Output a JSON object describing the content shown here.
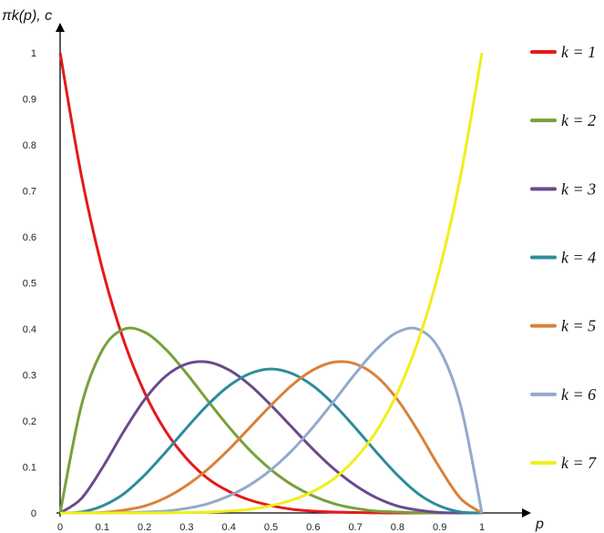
{
  "chart_data": {
    "type": "line",
    "ylabel": "πk(p), c",
    "xlabel": "p",
    "xlim": [
      0,
      1
    ],
    "ylim": [
      0,
      1
    ],
    "grid": false,
    "legend_position": "right",
    "x_ticks": [
      "0",
      "0.1",
      "0.2",
      "0.3",
      "0.4",
      "0.5",
      "0.6",
      "0.7",
      "0.8",
      "0.9",
      "1"
    ],
    "y_ticks": [
      "0",
      "0.1",
      "0.2",
      "0.3",
      "0.4",
      "0.5",
      "0.6",
      "0.7",
      "0.8",
      "0.9",
      "1"
    ],
    "x": [
      0,
      0.05,
      0.1,
      0.15,
      0.2,
      0.25,
      0.3,
      0.35,
      0.4,
      0.45,
      0.5,
      0.55,
      0.6,
      0.65,
      0.7,
      0.75,
      0.8,
      0.85,
      0.9,
      0.95,
      1
    ],
    "series": [
      {
        "name": "k = 1",
        "color": "#e31a1c",
        "values": [
          1.0,
          0.735,
          0.531,
          0.377,
          0.262,
          0.178,
          0.118,
          0.075,
          0.047,
          0.028,
          0.016,
          0.008,
          0.004,
          0.002,
          0.001,
          0.0002,
          0.0001,
          0.0,
          0.0,
          0.0,
          0.0
        ]
      },
      {
        "name": "k = 2",
        "color": "#77a13a",
        "values": [
          0.0,
          0.232,
          0.354,
          0.399,
          0.393,
          0.356,
          0.303,
          0.244,
          0.187,
          0.136,
          0.094,
          0.061,
          0.037,
          0.02,
          0.01,
          0.004,
          0.002,
          0.0004,
          0.0001,
          0.0,
          0.0
        ]
      },
      {
        "name": "k = 3",
        "color": "#6a4a8c",
        "values": [
          0.0,
          0.031,
          0.098,
          0.176,
          0.246,
          0.297,
          0.324,
          0.328,
          0.311,
          0.278,
          0.234,
          0.186,
          0.138,
          0.095,
          0.06,
          0.033,
          0.015,
          0.006,
          0.001,
          0.0001,
          0.0
        ]
      },
      {
        "name": "k = 4",
        "color": "#2e8b9e",
        "values": [
          0.0,
          0.002,
          0.015,
          0.041,
          0.082,
          0.132,
          0.185,
          0.235,
          0.276,
          0.303,
          0.313,
          0.303,
          0.276,
          0.235,
          0.185,
          0.132,
          0.082,
          0.041,
          0.015,
          0.002,
          0.0
        ]
      },
      {
        "name": "k = 5",
        "color": "#d9813a",
        "values": [
          0.0,
          0.0001,
          0.001,
          0.006,
          0.015,
          0.033,
          0.06,
          0.095,
          0.138,
          0.186,
          0.234,
          0.278,
          0.311,
          0.328,
          0.324,
          0.297,
          0.246,
          0.176,
          0.098,
          0.031,
          0.0
        ]
      },
      {
        "name": "k = 6",
        "color": "#94a9cc",
        "values": [
          0.0,
          0.0,
          0.0001,
          0.0004,
          0.002,
          0.004,
          0.01,
          0.02,
          0.037,
          0.061,
          0.094,
          0.136,
          0.187,
          0.244,
          0.303,
          0.356,
          0.393,
          0.399,
          0.354,
          0.232,
          0.0
        ]
      },
      {
        "name": "k = 7",
        "color": "#f2ee1a",
        "values": [
          0.0,
          0.0,
          0.0,
          0.0,
          0.0001,
          0.0002,
          0.001,
          0.002,
          0.004,
          0.008,
          0.016,
          0.028,
          0.047,
          0.075,
          0.118,
          0.178,
          0.262,
          0.377,
          0.531,
          0.735,
          1.0
        ]
      }
    ]
  }
}
